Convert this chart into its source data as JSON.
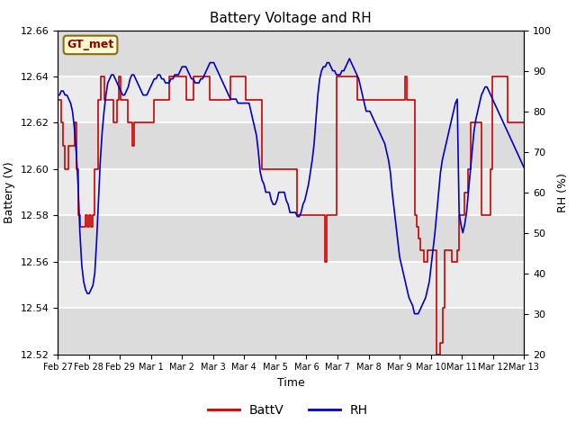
{
  "title": "Battery Voltage and RH",
  "xlabel": "Time",
  "ylabel_left": "Battery (V)",
  "ylabel_right": "RH (%)",
  "annotation_text": "GT_met",
  "annotation_color": "#8B0000",
  "annotation_bg": "#FFFACD",
  "annotation_border": "#8B6914",
  "left_ylim": [
    12.52,
    12.66
  ],
  "right_ylim": [
    20,
    100
  ],
  "left_yticks": [
    12.52,
    12.54,
    12.56,
    12.58,
    12.6,
    12.62,
    12.64,
    12.66
  ],
  "right_yticks": [
    20,
    30,
    40,
    50,
    60,
    70,
    80,
    90,
    100
  ],
  "bg_color": "#E8E8E8",
  "bg_band_light": "#F0F0F0",
  "bg_band_dark": "#DCDCDC",
  "grid_color": "#FFFFFF",
  "line_color_batt": "#CC0000",
  "line_color_rh": "#0000CC",
  "legend_label_batt": "BattV",
  "legend_label_rh": "RH",
  "x_tick_labels": [
    "Feb 27",
    "Feb 28",
    "Feb 29",
    "Mar 1",
    "Mar 2",
    "Mar 3",
    "Mar 4",
    "Mar 5",
    "Mar 6",
    "Mar 7",
    "Mar 8",
    "Mar 9",
    "Mar 10",
    "Mar 11",
    "Mar 12",
    "Mar 13"
  ],
  "batt_data": [
    12.63,
    12.63,
    12.62,
    12.61,
    12.6,
    12.6,
    12.61,
    12.61,
    12.61,
    12.62,
    12.6,
    12.58,
    12.575,
    12.575,
    12.575,
    12.58,
    12.575,
    12.58,
    12.575,
    12.58,
    12.6,
    12.6,
    12.63,
    12.64,
    12.64,
    12.63,
    12.63,
    12.63,
    12.63,
    12.63,
    12.62,
    12.62,
    12.63,
    12.64,
    12.63,
    12.63,
    12.63,
    12.63,
    12.62,
    12.62,
    12.61,
    12.62,
    12.62,
    12.62,
    12.62,
    12.62,
    12.62,
    12.62,
    12.62,
    12.62,
    12.62,
    12.62,
    12.63,
    12.63,
    12.63,
    12.63,
    12.63,
    12.63,
    12.63,
    12.63,
    12.64,
    12.64,
    12.64,
    12.64,
    12.64,
    12.64,
    12.64,
    12.64,
    12.64,
    12.63,
    12.63,
    12.63,
    12.63,
    12.64,
    12.64,
    12.64,
    12.64,
    12.64,
    12.64,
    12.64,
    12.64,
    12.64,
    12.63,
    12.63,
    12.63,
    12.63,
    12.63,
    12.63,
    12.63,
    12.63,
    12.63,
    12.63,
    12.63,
    12.64,
    12.64,
    12.64,
    12.64,
    12.64,
    12.64,
    12.64,
    12.64,
    12.63,
    12.63,
    12.63,
    12.63,
    12.63,
    12.63,
    12.63,
    12.63,
    12.63,
    12.6,
    12.6,
    12.6,
    12.6,
    12.6,
    12.6,
    12.6,
    12.6,
    12.6,
    12.6,
    12.6,
    12.6,
    12.6,
    12.6,
    12.6,
    12.6,
    12.6,
    12.6,
    12.6,
    12.58,
    12.58,
    12.58,
    12.58,
    12.58,
    12.58,
    12.58,
    12.58,
    12.58,
    12.58,
    12.58,
    12.58,
    12.58,
    12.58,
    12.58,
    12.56,
    12.58,
    12.58,
    12.58,
    12.58,
    12.58,
    12.64,
    12.64,
    12.64,
    12.64,
    12.64,
    12.64,
    12.64,
    12.64,
    12.64,
    12.64,
    12.64,
    12.63,
    12.63,
    12.63,
    12.63,
    12.63,
    12.63,
    12.63,
    12.63,
    12.63,
    12.63,
    12.63,
    12.63,
    12.63,
    12.63,
    12.63,
    12.63,
    12.63,
    12.63,
    12.63,
    12.63,
    12.63,
    12.63,
    12.63,
    12.63,
    12.63,
    12.63,
    12.64,
    12.63,
    12.63,
    12.63,
    12.63,
    12.58,
    12.575,
    12.57,
    12.565,
    12.565,
    12.56,
    12.56,
    12.565,
    12.565,
    12.565,
    12.565,
    12.565,
    12.52,
    12.52,
    12.525,
    12.54,
    12.565,
    12.565,
    12.565,
    12.565,
    12.56,
    12.56,
    12.56,
    12.565,
    12.58,
    12.58,
    12.58,
    12.59,
    12.59,
    12.6,
    12.62,
    12.62,
    12.62,
    12.62,
    12.62,
    12.62,
    12.58,
    12.58,
    12.58,
    12.58,
    12.58,
    12.6,
    12.64,
    12.64,
    12.64,
    12.64,
    12.64,
    12.64,
    12.64,
    12.64,
    12.62,
    12.62,
    12.62,
    12.62,
    12.62,
    12.62,
    12.62,
    12.62,
    12.62,
    12.62
  ],
  "rh_data": [
    84,
    84,
    85,
    85,
    84,
    84,
    83,
    82,
    80,
    76,
    70,
    62,
    50,
    42,
    38,
    36,
    35,
    35,
    36,
    37,
    40,
    48,
    58,
    68,
    75,
    80,
    84,
    87,
    88,
    89,
    89,
    88,
    87,
    86,
    85,
    84,
    84,
    85,
    86,
    88,
    89,
    89,
    88,
    87,
    86,
    85,
    84,
    84,
    84,
    85,
    86,
    87,
    88,
    88,
    89,
    89,
    88,
    88,
    87,
    87,
    87,
    88,
    88,
    89,
    89,
    89,
    90,
    91,
    91,
    91,
    90,
    89,
    88,
    88,
    87,
    87,
    87,
    88,
    88,
    89,
    90,
    91,
    92,
    92,
    92,
    91,
    90,
    89,
    88,
    87,
    86,
    85,
    84,
    83,
    83,
    83,
    83,
    82,
    82,
    82,
    82,
    82,
    82,
    82,
    80,
    78,
    76,
    74,
    70,
    65,
    63,
    62,
    60,
    60,
    60,
    58,
    57,
    57,
    58,
    60,
    60,
    60,
    60,
    58,
    57,
    55,
    55,
    55,
    55,
    54,
    54,
    55,
    57,
    58,
    60,
    62,
    65,
    68,
    72,
    78,
    84,
    88,
    90,
    91,
    91,
    92,
    92,
    91,
    90,
    90,
    89,
    89,
    89,
    90,
    90,
    91,
    92,
    93,
    92,
    91,
    90,
    89,
    88,
    86,
    84,
    82,
    80,
    80,
    80,
    79,
    78,
    77,
    76,
    75,
    74,
    73,
    72,
    70,
    68,
    65,
    60,
    56,
    52,
    48,
    44,
    42,
    40,
    38,
    36,
    34,
    33,
    32,
    30,
    30,
    30,
    31,
    32,
    33,
    34,
    36,
    38,
    42,
    46,
    50,
    55,
    60,
    65,
    68,
    70,
    72,
    74,
    76,
    78,
    80,
    82,
    83,
    55,
    52,
    50,
    52,
    55,
    60,
    65,
    70,
    75,
    78,
    80,
    82,
    84,
    85,
    86,
    86,
    85,
    84,
    83,
    82,
    81,
    80,
    79,
    78,
    77,
    76,
    75,
    74,
    73,
    72,
    71,
    70,
    69,
    68,
    67,
    66
  ]
}
